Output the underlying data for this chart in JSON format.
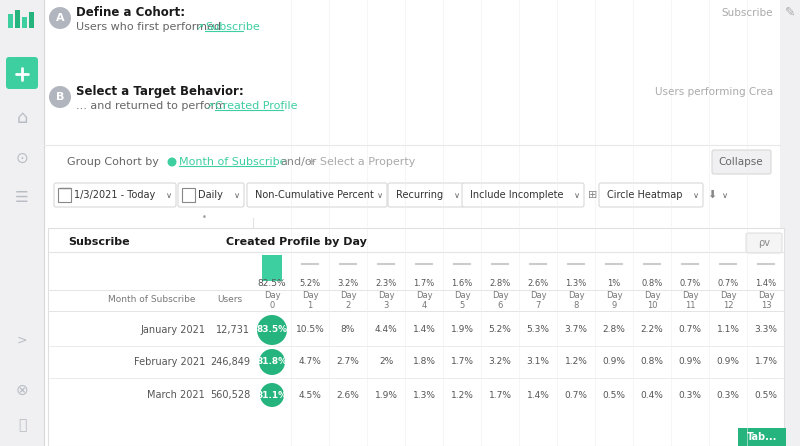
{
  "bg_color": "#f0f0f2",
  "panel_color": "#ffffff",
  "sidebar_bg": "#f0f0f2",
  "header_a_text": "Define a Cohort:",
  "header_a_sub": "Users who first performed",
  "header_a_link": "Subscribe",
  "header_b_text": "Select a Target Behavior:",
  "header_b_sub": "... and returned to perform",
  "header_b_link": "Created Profile",
  "header_b_right": "Users performing Crea",
  "header_a_right": "Subscribe",
  "group_label": "Group Cohort by",
  "group_link": "Month of Subscribe",
  "group_and": "and/or",
  "group_select": "+ Select a Property",
  "collapse_btn": "Collapse",
  "filter_date": "1/3/2021 - Today",
  "filter_freq": "Daily",
  "filter_type": "Non-Cumulative Percent",
  "filter_mode": "Recurring",
  "filter_inc": "Include Incomplete",
  "filter_view": "Circle Heatmap",
  "table_header_left": "Subscribe",
  "table_header_right": "Created Profile by Day",
  "col_totals": [
    "82.5%",
    "5.2%",
    "3.2%",
    "2.3%",
    "1.7%",
    "1.6%",
    "2.8%",
    "2.6%",
    "1.3%",
    "1%",
    "0.8%",
    "0.7%",
    "0.7%",
    "1.4%"
  ],
  "day_labels": [
    "Day\n0",
    "Day\n1",
    "Day\n2",
    "Day\n3",
    "Day\n4",
    "Day\n5",
    "Day\n6",
    "Day\n7",
    "Day\n8",
    "Day\n9",
    "Day\n10",
    "Day\n11",
    "Day\n12",
    "Day\n13"
  ],
  "row_month_label": "Month of Subscribe",
  "row_users_label": "Users",
  "row_labels": [
    "January 2021",
    "February 2021",
    "March 2021"
  ],
  "row_users": [
    "12,731",
    "246,849",
    "560,528"
  ],
  "row_day0": [
    "83.5%",
    "81.8%",
    "81.1%"
  ],
  "row_data": [
    [
      "10.5%",
      "8%",
      "4.4%",
      "1.4%",
      "1.9%",
      "5.2%",
      "5.3%",
      "3.7%",
      "2.8%",
      "2.2%",
      "0.7%",
      "1.1%",
      "3.3%"
    ],
    [
      "4.7%",
      "2.7%",
      "2%",
      "1.8%",
      "1.7%",
      "3.2%",
      "3.1%",
      "1.2%",
      "0.9%",
      "0.8%",
      "0.9%",
      "0.9%",
      "1.7%"
    ],
    [
      "4.5%",
      "2.6%",
      "1.9%",
      "1.3%",
      "1.2%",
      "1.7%",
      "1.4%",
      "0.7%",
      "0.5%",
      "0.4%",
      "0.3%",
      "0.3%",
      "0.5%"
    ]
  ],
  "teal_bar": "#3ecfa0",
  "teal_circle": "#25b47e",
  "teal_link": "#3ecfa0",
  "teal_underline": "#3ecfa0",
  "gray_circle": "#b0b5be",
  "gray_text": "#666666",
  "light_gray_text": "#999999",
  "border_color": "#e4e4e4",
  "dark_text": "#1a1a1a",
  "sidebar_icon_color": "#b8bcc4"
}
